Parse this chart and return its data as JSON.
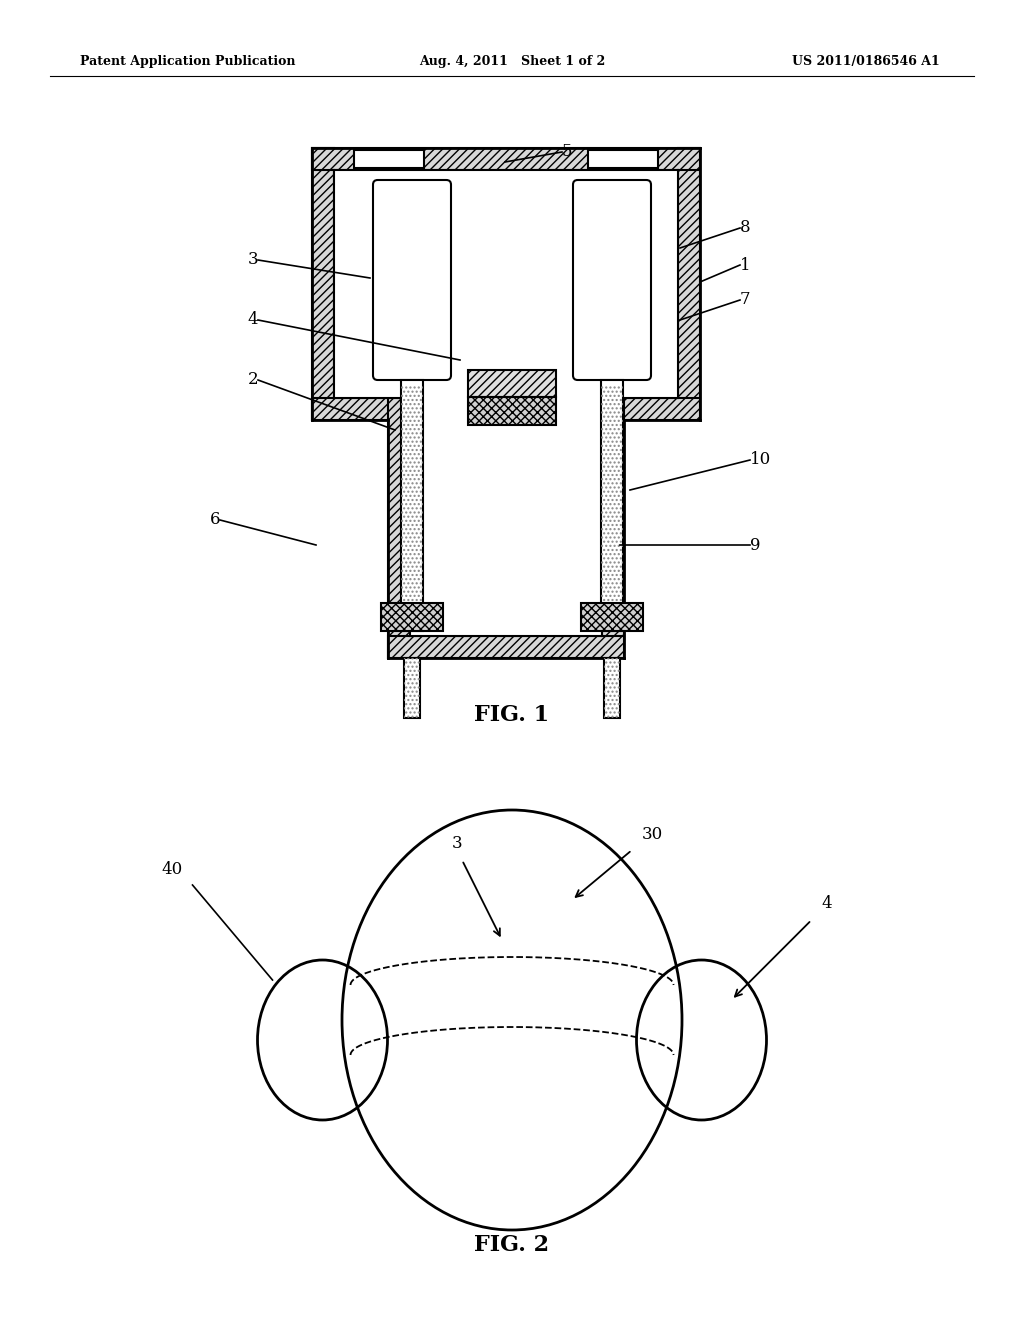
{
  "bg_color": "#ffffff",
  "line_color": "#000000",
  "header_left": "Patent Application Publication",
  "header_mid": "Aug. 4, 2011   Sheet 1 of 2",
  "header_right": "US 2011/0186546 A1",
  "fig1_label": "FIG. 1",
  "fig2_label": "FIG. 2"
}
